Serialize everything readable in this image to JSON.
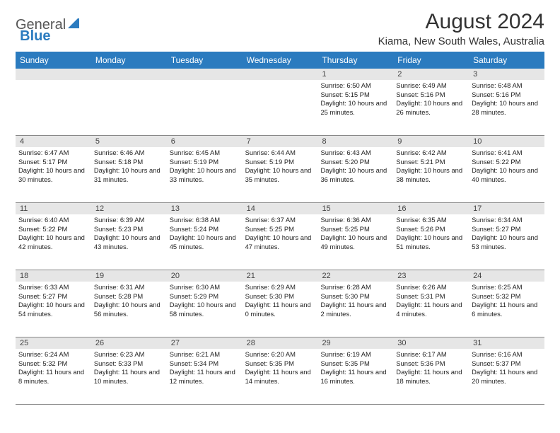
{
  "logo": {
    "word1": "General",
    "word2": "Blue"
  },
  "title": "August 2024",
  "location": "Kiama, New South Wales, Australia",
  "colors": {
    "header_bg": "#2b7bbf",
    "header_text": "#ffffff",
    "num_row_bg": "#e6e6e6",
    "border": "#888888",
    "text": "#222222"
  },
  "day_names": [
    "Sunday",
    "Monday",
    "Tuesday",
    "Wednesday",
    "Thursday",
    "Friday",
    "Saturday"
  ],
  "weeks": [
    [
      {
        "day": ""
      },
      {
        "day": ""
      },
      {
        "day": ""
      },
      {
        "day": ""
      },
      {
        "day": "1",
        "sunrise": "Sunrise: 6:50 AM",
        "sunset": "Sunset: 5:15 PM",
        "daylight": "Daylight: 10 hours and 25 minutes."
      },
      {
        "day": "2",
        "sunrise": "Sunrise: 6:49 AM",
        "sunset": "Sunset: 5:16 PM",
        "daylight": "Daylight: 10 hours and 26 minutes."
      },
      {
        "day": "3",
        "sunrise": "Sunrise: 6:48 AM",
        "sunset": "Sunset: 5:16 PM",
        "daylight": "Daylight: 10 hours and 28 minutes."
      }
    ],
    [
      {
        "day": "4",
        "sunrise": "Sunrise: 6:47 AM",
        "sunset": "Sunset: 5:17 PM",
        "daylight": "Daylight: 10 hours and 30 minutes."
      },
      {
        "day": "5",
        "sunrise": "Sunrise: 6:46 AM",
        "sunset": "Sunset: 5:18 PM",
        "daylight": "Daylight: 10 hours and 31 minutes."
      },
      {
        "day": "6",
        "sunrise": "Sunrise: 6:45 AM",
        "sunset": "Sunset: 5:19 PM",
        "daylight": "Daylight: 10 hours and 33 minutes."
      },
      {
        "day": "7",
        "sunrise": "Sunrise: 6:44 AM",
        "sunset": "Sunset: 5:19 PM",
        "daylight": "Daylight: 10 hours and 35 minutes."
      },
      {
        "day": "8",
        "sunrise": "Sunrise: 6:43 AM",
        "sunset": "Sunset: 5:20 PM",
        "daylight": "Daylight: 10 hours and 36 minutes."
      },
      {
        "day": "9",
        "sunrise": "Sunrise: 6:42 AM",
        "sunset": "Sunset: 5:21 PM",
        "daylight": "Daylight: 10 hours and 38 minutes."
      },
      {
        "day": "10",
        "sunrise": "Sunrise: 6:41 AM",
        "sunset": "Sunset: 5:22 PM",
        "daylight": "Daylight: 10 hours and 40 minutes."
      }
    ],
    [
      {
        "day": "11",
        "sunrise": "Sunrise: 6:40 AM",
        "sunset": "Sunset: 5:22 PM",
        "daylight": "Daylight: 10 hours and 42 minutes."
      },
      {
        "day": "12",
        "sunrise": "Sunrise: 6:39 AM",
        "sunset": "Sunset: 5:23 PM",
        "daylight": "Daylight: 10 hours and 43 minutes."
      },
      {
        "day": "13",
        "sunrise": "Sunrise: 6:38 AM",
        "sunset": "Sunset: 5:24 PM",
        "daylight": "Daylight: 10 hours and 45 minutes."
      },
      {
        "day": "14",
        "sunrise": "Sunrise: 6:37 AM",
        "sunset": "Sunset: 5:25 PM",
        "daylight": "Daylight: 10 hours and 47 minutes."
      },
      {
        "day": "15",
        "sunrise": "Sunrise: 6:36 AM",
        "sunset": "Sunset: 5:25 PM",
        "daylight": "Daylight: 10 hours and 49 minutes."
      },
      {
        "day": "16",
        "sunrise": "Sunrise: 6:35 AM",
        "sunset": "Sunset: 5:26 PM",
        "daylight": "Daylight: 10 hours and 51 minutes."
      },
      {
        "day": "17",
        "sunrise": "Sunrise: 6:34 AM",
        "sunset": "Sunset: 5:27 PM",
        "daylight": "Daylight: 10 hours and 53 minutes."
      }
    ],
    [
      {
        "day": "18",
        "sunrise": "Sunrise: 6:33 AM",
        "sunset": "Sunset: 5:27 PM",
        "daylight": "Daylight: 10 hours and 54 minutes."
      },
      {
        "day": "19",
        "sunrise": "Sunrise: 6:31 AM",
        "sunset": "Sunset: 5:28 PM",
        "daylight": "Daylight: 10 hours and 56 minutes."
      },
      {
        "day": "20",
        "sunrise": "Sunrise: 6:30 AM",
        "sunset": "Sunset: 5:29 PM",
        "daylight": "Daylight: 10 hours and 58 minutes."
      },
      {
        "day": "21",
        "sunrise": "Sunrise: 6:29 AM",
        "sunset": "Sunset: 5:30 PM",
        "daylight": "Daylight: 11 hours and 0 minutes."
      },
      {
        "day": "22",
        "sunrise": "Sunrise: 6:28 AM",
        "sunset": "Sunset: 5:30 PM",
        "daylight": "Daylight: 11 hours and 2 minutes."
      },
      {
        "day": "23",
        "sunrise": "Sunrise: 6:26 AM",
        "sunset": "Sunset: 5:31 PM",
        "daylight": "Daylight: 11 hours and 4 minutes."
      },
      {
        "day": "24",
        "sunrise": "Sunrise: 6:25 AM",
        "sunset": "Sunset: 5:32 PM",
        "daylight": "Daylight: 11 hours and 6 minutes."
      }
    ],
    [
      {
        "day": "25",
        "sunrise": "Sunrise: 6:24 AM",
        "sunset": "Sunset: 5:32 PM",
        "daylight": "Daylight: 11 hours and 8 minutes."
      },
      {
        "day": "26",
        "sunrise": "Sunrise: 6:23 AM",
        "sunset": "Sunset: 5:33 PM",
        "daylight": "Daylight: 11 hours and 10 minutes."
      },
      {
        "day": "27",
        "sunrise": "Sunrise: 6:21 AM",
        "sunset": "Sunset: 5:34 PM",
        "daylight": "Daylight: 11 hours and 12 minutes."
      },
      {
        "day": "28",
        "sunrise": "Sunrise: 6:20 AM",
        "sunset": "Sunset: 5:35 PM",
        "daylight": "Daylight: 11 hours and 14 minutes."
      },
      {
        "day": "29",
        "sunrise": "Sunrise: 6:19 AM",
        "sunset": "Sunset: 5:35 PM",
        "daylight": "Daylight: 11 hours and 16 minutes."
      },
      {
        "day": "30",
        "sunrise": "Sunrise: 6:17 AM",
        "sunset": "Sunset: 5:36 PM",
        "daylight": "Daylight: 11 hours and 18 minutes."
      },
      {
        "day": "31",
        "sunrise": "Sunrise: 6:16 AM",
        "sunset": "Sunset: 5:37 PM",
        "daylight": "Daylight: 11 hours and 20 minutes."
      }
    ]
  ]
}
